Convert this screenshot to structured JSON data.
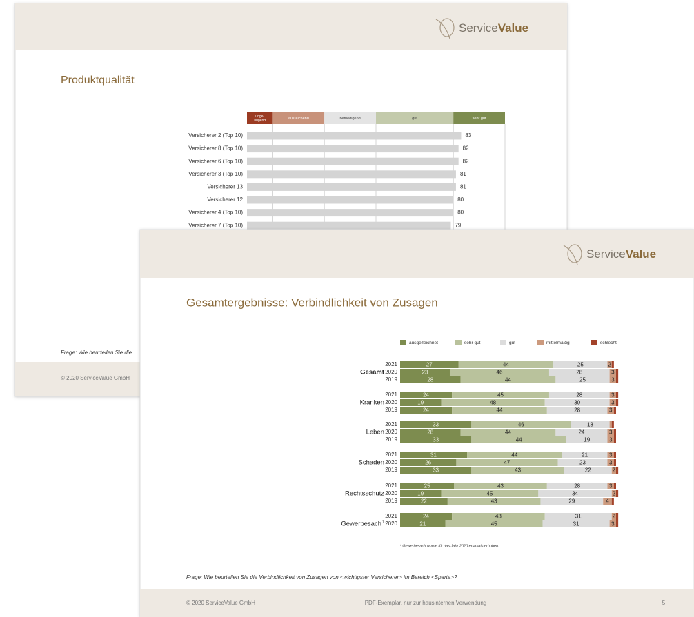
{
  "back_slide": {
    "logo": {
      "service": "Service",
      "value": "Value"
    },
    "title": "Produktqualität",
    "question": "Frage: Wie beurteilen Sie die",
    "copyright": "© 2020 ServiceValue GmbH"
  },
  "front_slide": {
    "logo": {
      "service": "Service",
      "value": "Value"
    },
    "title": "Gesamtergebnisse: Verbindlichkeit von Zusagen",
    "question": "Frage: Wie beurteilen Sie die Verbindlichkeit von Zusagen von <wichtigster Versicherer> im Bereich <Sparte>?",
    "copyright": "© 2020 ServiceValue GmbH",
    "notice": "PDF-Exemplar, nur zur hausinternen Verwendung",
    "page": "5"
  },
  "chart_data": [
    {
      "type": "bar",
      "orientation": "horizontal",
      "categories": [
        "Versicherer 2 (Top 10)",
        "Versicherer 8 (Top 10)",
        "Versicherer 6 (Top 10)",
        "Versicherer 3 (Top 10)",
        "Versicherer 13",
        "Versicherer 12",
        "Versicherer 4 (Top 10)",
        "Versicherer 7 (Top 10)"
      ],
      "values": [
        83,
        82,
        82,
        81,
        81,
        80,
        80,
        79
      ],
      "color": "#d4d4d4",
      "xlim": [
        0,
        100
      ],
      "bands": [
        {
          "label": [
            "unge-",
            "nügend"
          ],
          "from": 0,
          "to": 10,
          "color": "#9b3b22"
        },
        {
          "label": [
            "ausreichend"
          ],
          "from": 10,
          "to": 30,
          "color": "#c8927a"
        },
        {
          "label": [
            "befriedigend"
          ],
          "from": 30,
          "to": 50,
          "color": "#e4e4e4"
        },
        {
          "label": [
            "gut"
          ],
          "from": 50,
          "to": 80,
          "color": "#c3caab"
        },
        {
          "label": [
            "sehr gut"
          ],
          "from": 80,
          "to": 100,
          "color": "#7d8c4f"
        }
      ]
    },
    {
      "type": "stacked_bar",
      "orientation": "horizontal",
      "xlim": [
        0,
        100
      ],
      "groups": [
        {
          "label": "Gesamt",
          "years": [
            "2021",
            "2020",
            "2019"
          ]
        },
        {
          "label": "Kranken",
          "years": [
            "2021",
            "2020",
            "2019"
          ]
        },
        {
          "label": "Leben",
          "years": [
            "2021",
            "2020",
            "2019"
          ]
        },
        {
          "label": "Schaden",
          "years": [
            "2021",
            "2020",
            "2019"
          ]
        },
        {
          "label": "Rechtsschutz",
          "years": [
            "2021",
            "2020",
            "2019"
          ]
        },
        {
          "label": "Gewerbesach",
          "note": "1",
          "years": [
            "2021",
            "2020"
          ]
        }
      ],
      "series": [
        {
          "name": "ausgezeichnet",
          "color": "#7d8c4f",
          "values": [
            27,
            23,
            28,
            24,
            19,
            24,
            33,
            28,
            33,
            31,
            26,
            33,
            25,
            19,
            22,
            24,
            21
          ]
        },
        {
          "name": "sehr gut",
          "color": "#b9c29c",
          "values": [
            44,
            46,
            44,
            45,
            48,
            44,
            46,
            44,
            44,
            44,
            47,
            43,
            43,
            45,
            43,
            43,
            45
          ]
        },
        {
          "name": "gut",
          "color": "#dcdcdc",
          "values": [
            25,
            28,
            25,
            28,
            30,
            28,
            18,
            24,
            19,
            21,
            23,
            22,
            28,
            34,
            29,
            31,
            31
          ]
        },
        {
          "name": "mittelmäßig",
          "color": "#cc9a7e",
          "values": [
            2,
            3,
            3,
            3,
            3,
            3,
            1,
            3,
            3,
            3,
            3,
            2,
            3,
            2,
            4,
            2,
            3
          ]
        },
        {
          "name": "schlecht",
          "color": "#a3432a",
          "values": [
            1,
            1,
            1,
            1,
            1,
            1,
            1,
            1,
            1,
            1,
            1,
            1,
            1,
            1,
            1,
            1,
            1
          ]
        }
      ],
      "footnote": "¹ Gewerbesach wurde für das Jahr 2020 erstmals erhoben."
    }
  ]
}
